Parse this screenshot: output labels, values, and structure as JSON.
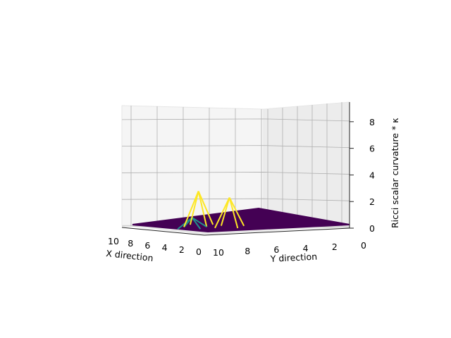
{
  "chart_data": {
    "type": "surface3d",
    "xlabel": "X direction",
    "ylabel": "Y direction",
    "zlabel": "Ricci scalar curvature * κ",
    "xlim": [
      0,
      10
    ],
    "ylim": [
      0,
      10
    ],
    "zlim": [
      0,
      9
    ],
    "x_ticks": [
      "10",
      "8",
      "6",
      "4",
      "2",
      "0"
    ],
    "y_ticks": [
      "10",
      "8",
      "6",
      "4",
      "2",
      "0"
    ],
    "z_ticks": [
      "0",
      "2",
      "4",
      "6",
      "8"
    ],
    "grid": true,
    "colormap": "viridis",
    "peaks": [
      {
        "x": 6,
        "y": 7,
        "z": 2.0
      },
      {
        "x": 4,
        "y": 6,
        "z": 1.7
      },
      {
        "x": 5,
        "y": 8,
        "z": 0.6
      }
    ],
    "colors": {
      "pane": "#f2f2f2",
      "grid": "#b0b0b0",
      "surface_low": "#440154",
      "surface_mid": "#21918c",
      "surface_high": "#fde725"
    }
  }
}
